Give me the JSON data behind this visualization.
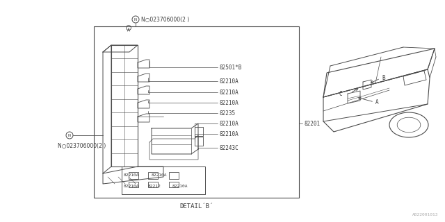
{
  "bg_color": "#ffffff",
  "line_color": "#4a4a4a",
  "text_color": "#3a3a3a",
  "diagram_id": "A822001013",
  "detail_label": "DETAIL´B´",
  "bolt_label": "N○023706000(2 )",
  "part_labels_right": [
    "82501*B",
    "82210A",
    "82210A",
    "82210A",
    "82235",
    "82210A",
    "82210A",
    "82243C"
  ],
  "part_main": "82201",
  "bottom_row1": [
    "82210A",
    "82210A"
  ],
  "bottom_row2": [
    "82210A",
    "82212",
    "82210A"
  ]
}
